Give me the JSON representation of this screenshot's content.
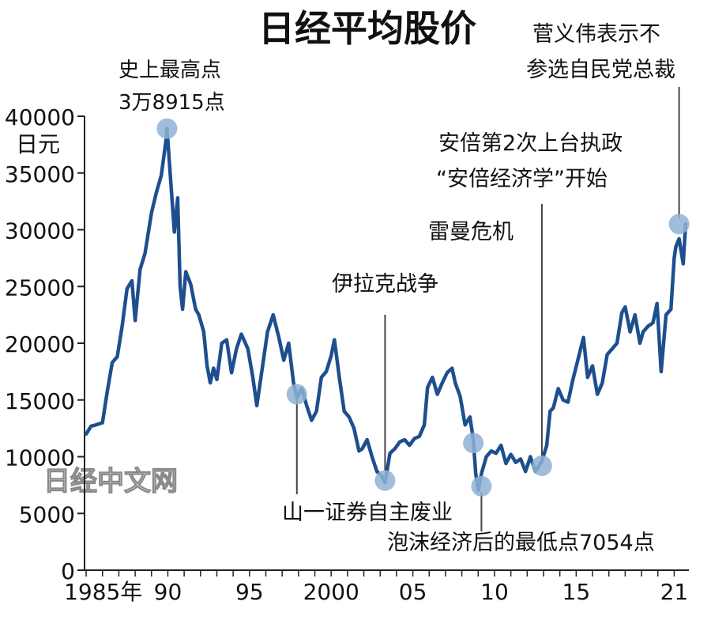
{
  "chart_data": {
    "type": "line",
    "title": "日经平均股价",
    "ylabel": "日元",
    "ylim": [
      0,
      40000
    ],
    "y_ticks": [
      "0",
      "5000",
      "10000",
      "15000",
      "20000",
      "25000",
      "30000",
      "35000",
      "40000"
    ],
    "x_ticks": [
      "1985年",
      "90",
      "95",
      "2000",
      "05",
      "10",
      "15",
      "21"
    ],
    "xlim": [
      1984.9,
      2021.9
    ],
    "grid": false,
    "legend": "none",
    "watermark": "日经中文网",
    "colors": {
      "line": "#1d4f8f",
      "marker": "#8fb1d6",
      "leader": "#444444"
    },
    "series": [
      {
        "x": [
          1985.0,
          1985.3,
          1985.6,
          1986.0,
          1986.3,
          1986.6,
          1986.9,
          1987.2,
          1987.5,
          1987.8,
          1988.0,
          1988.3,
          1988.6,
          1989.0,
          1989.3,
          1989.6,
          1989.9,
          1989.95,
          1990.2,
          1990.4,
          1990.6,
          1990.75,
          1990.9,
          1991.1,
          1991.4,
          1991.7,
          1991.9,
          1992.2,
          1992.4,
          1992.6,
          1992.8,
          1993.0,
          1993.3,
          1993.6,
          1993.9,
          1994.2,
          1994.5,
          1994.9,
          1995.2,
          1995.45,
          1995.8,
          1996.1,
          1996.45,
          1996.8,
          1997.1,
          1997.4,
          1997.7,
          1997.9,
          1998.2,
          1998.5,
          1998.8,
          1999.1,
          1999.4,
          1999.7,
          2000.0,
          2000.2,
          2000.5,
          2000.8,
          2001.1,
          2001.4,
          2001.7,
          2001.9,
          2002.2,
          2002.5,
          2002.8,
          2003.1,
          2003.3,
          2003.6,
          2003.9,
          2004.2,
          2004.5,
          2004.8,
          2005.1,
          2005.4,
          2005.7,
          2005.9,
          2006.2,
          2006.5,
          2006.8,
          2007.1,
          2007.4,
          2007.6,
          2007.9,
          2008.2,
          2008.5,
          2008.7,
          2008.85,
          2009.0,
          2009.2,
          2009.5,
          2009.8,
          2010.1,
          2010.4,
          2010.7,
          2011.0,
          2011.3,
          2011.6,
          2011.9,
          2012.2,
          2012.5,
          2012.9,
          2013.2,
          2013.4,
          2013.6,
          2013.9,
          2014.2,
          2014.5,
          2014.8,
          2015.1,
          2015.45,
          2015.7,
          2016.0,
          2016.3,
          2016.6,
          2016.9,
          2017.2,
          2017.5,
          2017.8,
          2018.0,
          2018.3,
          2018.6,
          2018.9,
          2019.1,
          2019.4,
          2019.7,
          2019.95,
          2020.2,
          2020.5,
          2020.8,
          2021.0,
          2021.1,
          2021.3,
          2021.55,
          2021.7
        ],
        "y": [
          12000,
          12700,
          12800,
          13000,
          15800,
          18300,
          18800,
          21500,
          24800,
          25500,
          22000,
          26500,
          27900,
          31500,
          33300,
          34800,
          38000,
          38915,
          33800,
          29800,
          32800,
          25000,
          23000,
          26300,
          25200,
          23000,
          22500,
          21000,
          18000,
          16500,
          17800,
          16800,
          20000,
          20300,
          17400,
          19500,
          20800,
          19500,
          17000,
          14500,
          18000,
          21000,
          22500,
          20500,
          18500,
          20000,
          16500,
          15200,
          16000,
          14500,
          13200,
          14000,
          17000,
          17500,
          18900,
          20300,
          17000,
          14000,
          13500,
          12500,
          10500,
          10700,
          11500,
          10000,
          8700,
          8300,
          7700,
          10300,
          10700,
          11300,
          11500,
          11000,
          11600,
          11800,
          12800,
          16100,
          17000,
          15500,
          16500,
          17400,
          17800,
          16500,
          15300,
          12800,
          13500,
          11500,
          8500,
          7054,
          8500,
          10000,
          10500,
          10300,
          11000,
          9400,
          10200,
          9500,
          9800,
          8700,
          10000,
          8700,
          9600,
          11000,
          14000,
          14300,
          16000,
          15000,
          14800,
          16800,
          18500,
          20500,
          17000,
          18000,
          15500,
          16500,
          19000,
          19500,
          20000,
          22700,
          23200,
          21000,
          22500,
          20000,
          21000,
          21500,
          21800,
          23500,
          17500,
          22500,
          23000,
          27500,
          28500,
          29200,
          27000,
          30500
        ]
      }
    ],
    "annotations": [
      {
        "text": "史上最高点",
        "text2": "3万8915点",
        "x": 1989.95,
        "y": 38915
      },
      {
        "text": "山一证券自主废业",
        "x": 1997.9,
        "y": 15500
      },
      {
        "text": "伊拉克战争",
        "x": 2003.3,
        "y": 7900
      },
      {
        "text": "雷曼危机",
        "x": 2008.7,
        "y": 11200
      },
      {
        "text": "泡沫经济后的最低点7054点",
        "x": 2009.2,
        "y": 7400
      },
      {
        "text": "安倍第2次上台执政",
        "text2": "“安倍经济学”开始",
        "x": 2012.9,
        "y": 9200
      },
      {
        "text": "菅义伟表示不",
        "text2": "参选自民党总裁",
        "x": 2021.3,
        "y": 30500
      }
    ]
  }
}
